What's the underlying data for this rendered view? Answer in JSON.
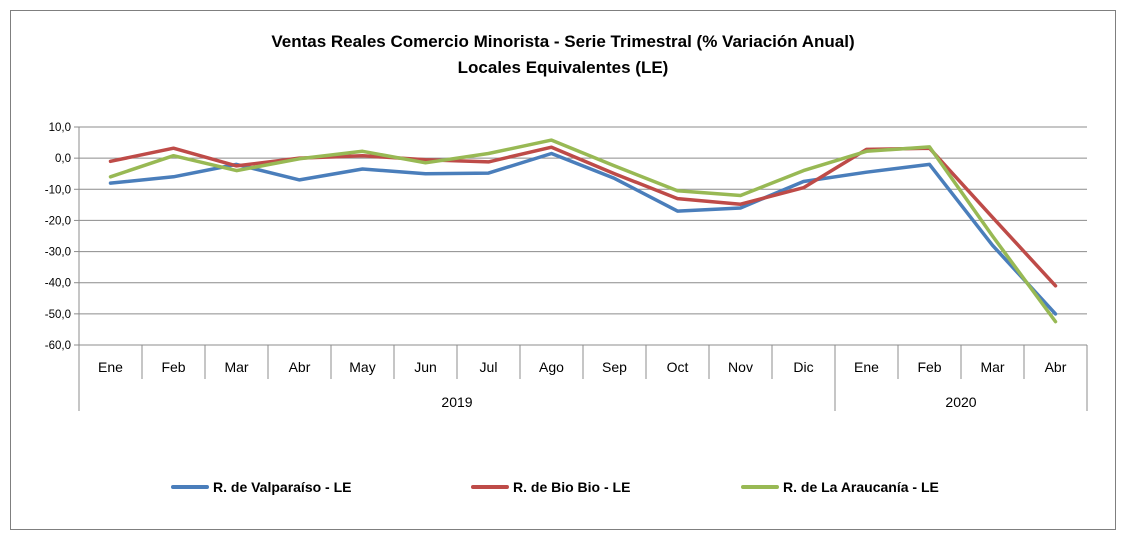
{
  "chart_data": {
    "type": "line",
    "title": "Ventas Reales Comercio Minorista - Serie Trimestral (% Variación Anual)",
    "subtitle": "Locales Equivalentes (LE)",
    "xlabel": "",
    "ylabel": "",
    "categories": [
      "Ene",
      "Feb",
      "Mar",
      "Abr",
      "May",
      "Jun",
      "Jul",
      "Ago",
      "Sep",
      "Oct",
      "Nov",
      "Dic",
      "Ene",
      "Feb",
      "Mar",
      "Abr"
    ],
    "groups": [
      {
        "label": "2019",
        "start": 0,
        "end": 11
      },
      {
        "label": "2020",
        "start": 12,
        "end": 15
      }
    ],
    "ylim": [
      -60,
      10
    ],
    "yticks": [
      10,
      0,
      -10,
      -20,
      -30,
      -40,
      -50,
      -60
    ],
    "ytick_labels": [
      "10,0",
      "0,0",
      "-10,0",
      "-20,0",
      "-30,0",
      "-40,0",
      "-50,0",
      "-60,0"
    ],
    "grid": true,
    "legend_position": "bottom",
    "series": [
      {
        "name": "R. de Valparaíso - LE",
        "color": "#4a7ebb",
        "values": [
          -8.0,
          -6.0,
          -2.0,
          -7.0,
          -3.5,
          -5.0,
          -4.8,
          1.5,
          -6.5,
          -17.0,
          -16.0,
          -7.5,
          -4.5,
          -2.0,
          -28.0,
          -50.0
        ]
      },
      {
        "name": "R. de Bio Bio - LE",
        "color": "#be4b48",
        "values": [
          -1.0,
          3.2,
          -2.5,
          0.0,
          0.8,
          -0.5,
          -1.2,
          3.5,
          -5.0,
          -13.0,
          -14.8,
          -9.5,
          2.8,
          3.2,
          -19.0,
          -41.0
        ]
      },
      {
        "name": "R. de La Araucanía - LE",
        "color": "#98b954",
        "values": [
          -6.0,
          0.8,
          -4.0,
          -0.2,
          2.2,
          -1.5,
          1.5,
          5.8,
          -2.5,
          -10.5,
          -12.0,
          -4.0,
          2.2,
          3.6,
          -25.0,
          -52.5
        ]
      }
    ]
  }
}
